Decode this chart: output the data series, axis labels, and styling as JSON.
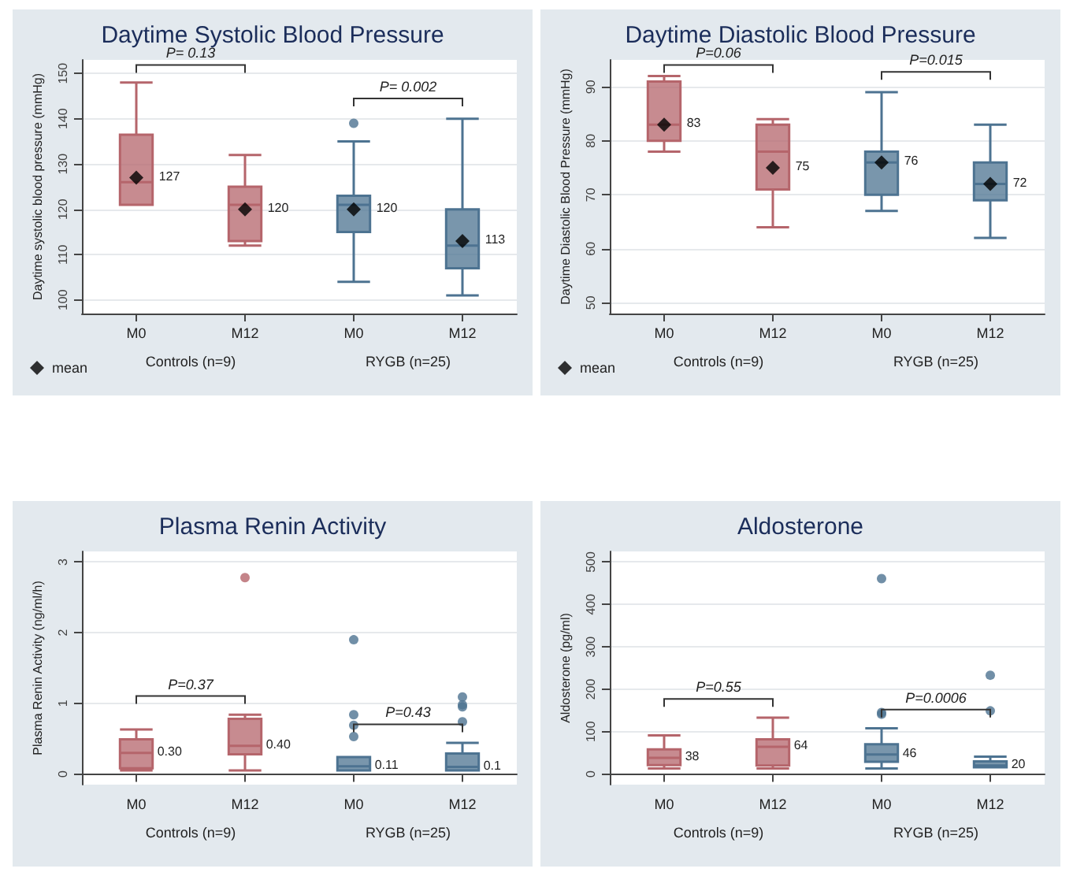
{
  "chart_data": [
    {
      "type": "box",
      "title": "Daytime Systolic Blood Pressure",
      "ylabel": "Daytime systolic blood pressure (mmHg)",
      "categories": [
        "M0",
        "M12",
        "M0",
        "M12"
      ],
      "ylim": [
        97,
        153
      ],
      "yticks": [
        100,
        110,
        120,
        130,
        140,
        150
      ],
      "grid": "y",
      "legend": "bottom left",
      "data_labels": true,
      "series": [
        {
          "colors": [
            "#b5656b",
            "#b5656b",
            "#4d7391",
            "#4d7391"
          ],
          "boxes": [
            {
              "low": 121,
              "q1": 121,
              "median": 126,
              "q3": 136.5,
              "high": 148
            },
            {
              "low": 112,
              "q1": 113,
              "median": 121,
              "q3": 125,
              "high": 132
            },
            {
              "low": 104,
              "q1": 115,
              "median": 121,
              "q3": 123,
              "high": 135,
              "outliers": [
                139
              ]
            },
            {
              "low": 101,
              "q1": 107,
              "median": 112,
              "q3": 120,
              "high": 140
            }
          ]
        },
        {
          "type": "scatter",
          "name": "mean",
          "color": "#000000",
          "marker": "diamond",
          "values": [
            127,
            120,
            120,
            113
          ]
        }
      ],
      "annotations": [
        "Controls (n=9)",
        "RYGB (n=25)",
        "P= 0.13",
        "P= 0.002"
      ]
    },
    {
      "type": "box",
      "title": "Daytime Diastolic Blood Pressure",
      "ylabel": "Daytime Diastolic Blood Pressure (mmHg)",
      "categories": [
        "M0",
        "M12",
        "M0",
        "M12"
      ],
      "ylim": [
        48,
        95
      ],
      "yticks": [
        50,
        60,
        70,
        80,
        90
      ],
      "grid": "y",
      "legend": "bottom left",
      "data_labels": true,
      "series": [
        {
          "colors": [
            "#b5656b",
            "#b5656b",
            "#4d7391",
            "#4d7391"
          ],
          "boxes": [
            {
              "low": 78,
              "q1": 80,
              "median": 83,
              "q3": 91,
              "high": 92
            },
            {
              "low": 64,
              "q1": 71,
              "median": 78,
              "q3": 83,
              "high": 84
            },
            {
              "low": 67,
              "q1": 70,
              "median": 76,
              "q3": 78,
              "high": 89
            },
            {
              "low": 62,
              "q1": 69,
              "median": 72,
              "q3": 76,
              "high": 83
            }
          ]
        },
        {
          "type": "scatter",
          "name": "mean",
          "color": "#000000",
          "marker": "diamond",
          "values": [
            83,
            75,
            76,
            72
          ]
        }
      ],
      "annotations": [
        "Controls (n=9)",
        "RYGB (n=25)",
        "P=0.06",
        "P=0.015"
      ]
    },
    {
      "type": "box",
      "title": "Plasma Renin Activity",
      "ylabel": "Plasma Renin Activity (ng/ml/h)",
      "categories": [
        "M0",
        "M12",
        "M0",
        "M12"
      ],
      "ylim": [
        -0.15,
        3.15
      ],
      "yticks": [
        0,
        1,
        2,
        3
      ],
      "grid": "y",
      "series": [
        {
          "colors": [
            "#b5656b",
            "#b5656b",
            "#4d7391",
            "#4d7391"
          ],
          "value_labels": [
            "0.30",
            "0.40",
            "0.11",
            "0.1"
          ],
          "boxes": [
            {
              "low": 0.05,
              "q1": 0.08,
              "median": 0.3,
              "q3": 0.49,
              "high": 0.63
            },
            {
              "low": 0.05,
              "q1": 0.28,
              "median": 0.4,
              "q3": 0.78,
              "high": 0.84,
              "outliers": [
                2.78
              ]
            },
            {
              "low": 0.05,
              "q1": 0.05,
              "median": 0.11,
              "q3": 0.24,
              "high": 0.24,
              "outliers": [
                1.9,
                0.84,
                0.69,
                0.53
              ]
            },
            {
              "low": 0.05,
              "q1": 0.05,
              "median": 0.1,
              "q3": 0.29,
              "high": 0.44,
              "outliers": [
                1.09,
                0.98,
                0.95,
                0.74
              ]
            }
          ]
        }
      ],
      "annotations": [
        "Controls (n=9)",
        "RYGB (n=25)",
        "P=0.37",
        "P=0.43"
      ]
    },
    {
      "type": "box",
      "title": "Aldosterone",
      "ylabel": "Aldosterone (pg/ml)",
      "categories": [
        "M0",
        "M12",
        "M0",
        "M12"
      ],
      "ylim": [
        -25,
        525
      ],
      "yticks": [
        0,
        100,
        200,
        300,
        400,
        500
      ],
      "grid": "y",
      "series": [
        {
          "colors": [
            "#b5656b",
            "#b5656b",
            "#4d7391",
            "#4d7391"
          ],
          "value_labels": [
            "38",
            "64",
            "46",
            "20"
          ],
          "boxes": [
            {
              "low": 13,
              "q1": 21,
              "median": 38,
              "q3": 58,
              "high": 91
            },
            {
              "low": 13,
              "q1": 20,
              "median": 64,
              "q3": 82,
              "high": 133
            },
            {
              "low": 13,
              "q1": 29,
              "median": 46,
              "q3": 70,
              "high": 108,
              "outliers": [
                461,
                145,
                141
              ]
            },
            {
              "low": 16,
              "q1": 16,
              "median": 20,
              "q3": 30,
              "high": 41,
              "outliers": [
                233,
                149
              ]
            }
          ]
        }
      ],
      "annotations": [
        "Controls (n=9)",
        "RYGB (n=25)",
        "P=0.55",
        "P=0.0006"
      ]
    }
  ]
}
